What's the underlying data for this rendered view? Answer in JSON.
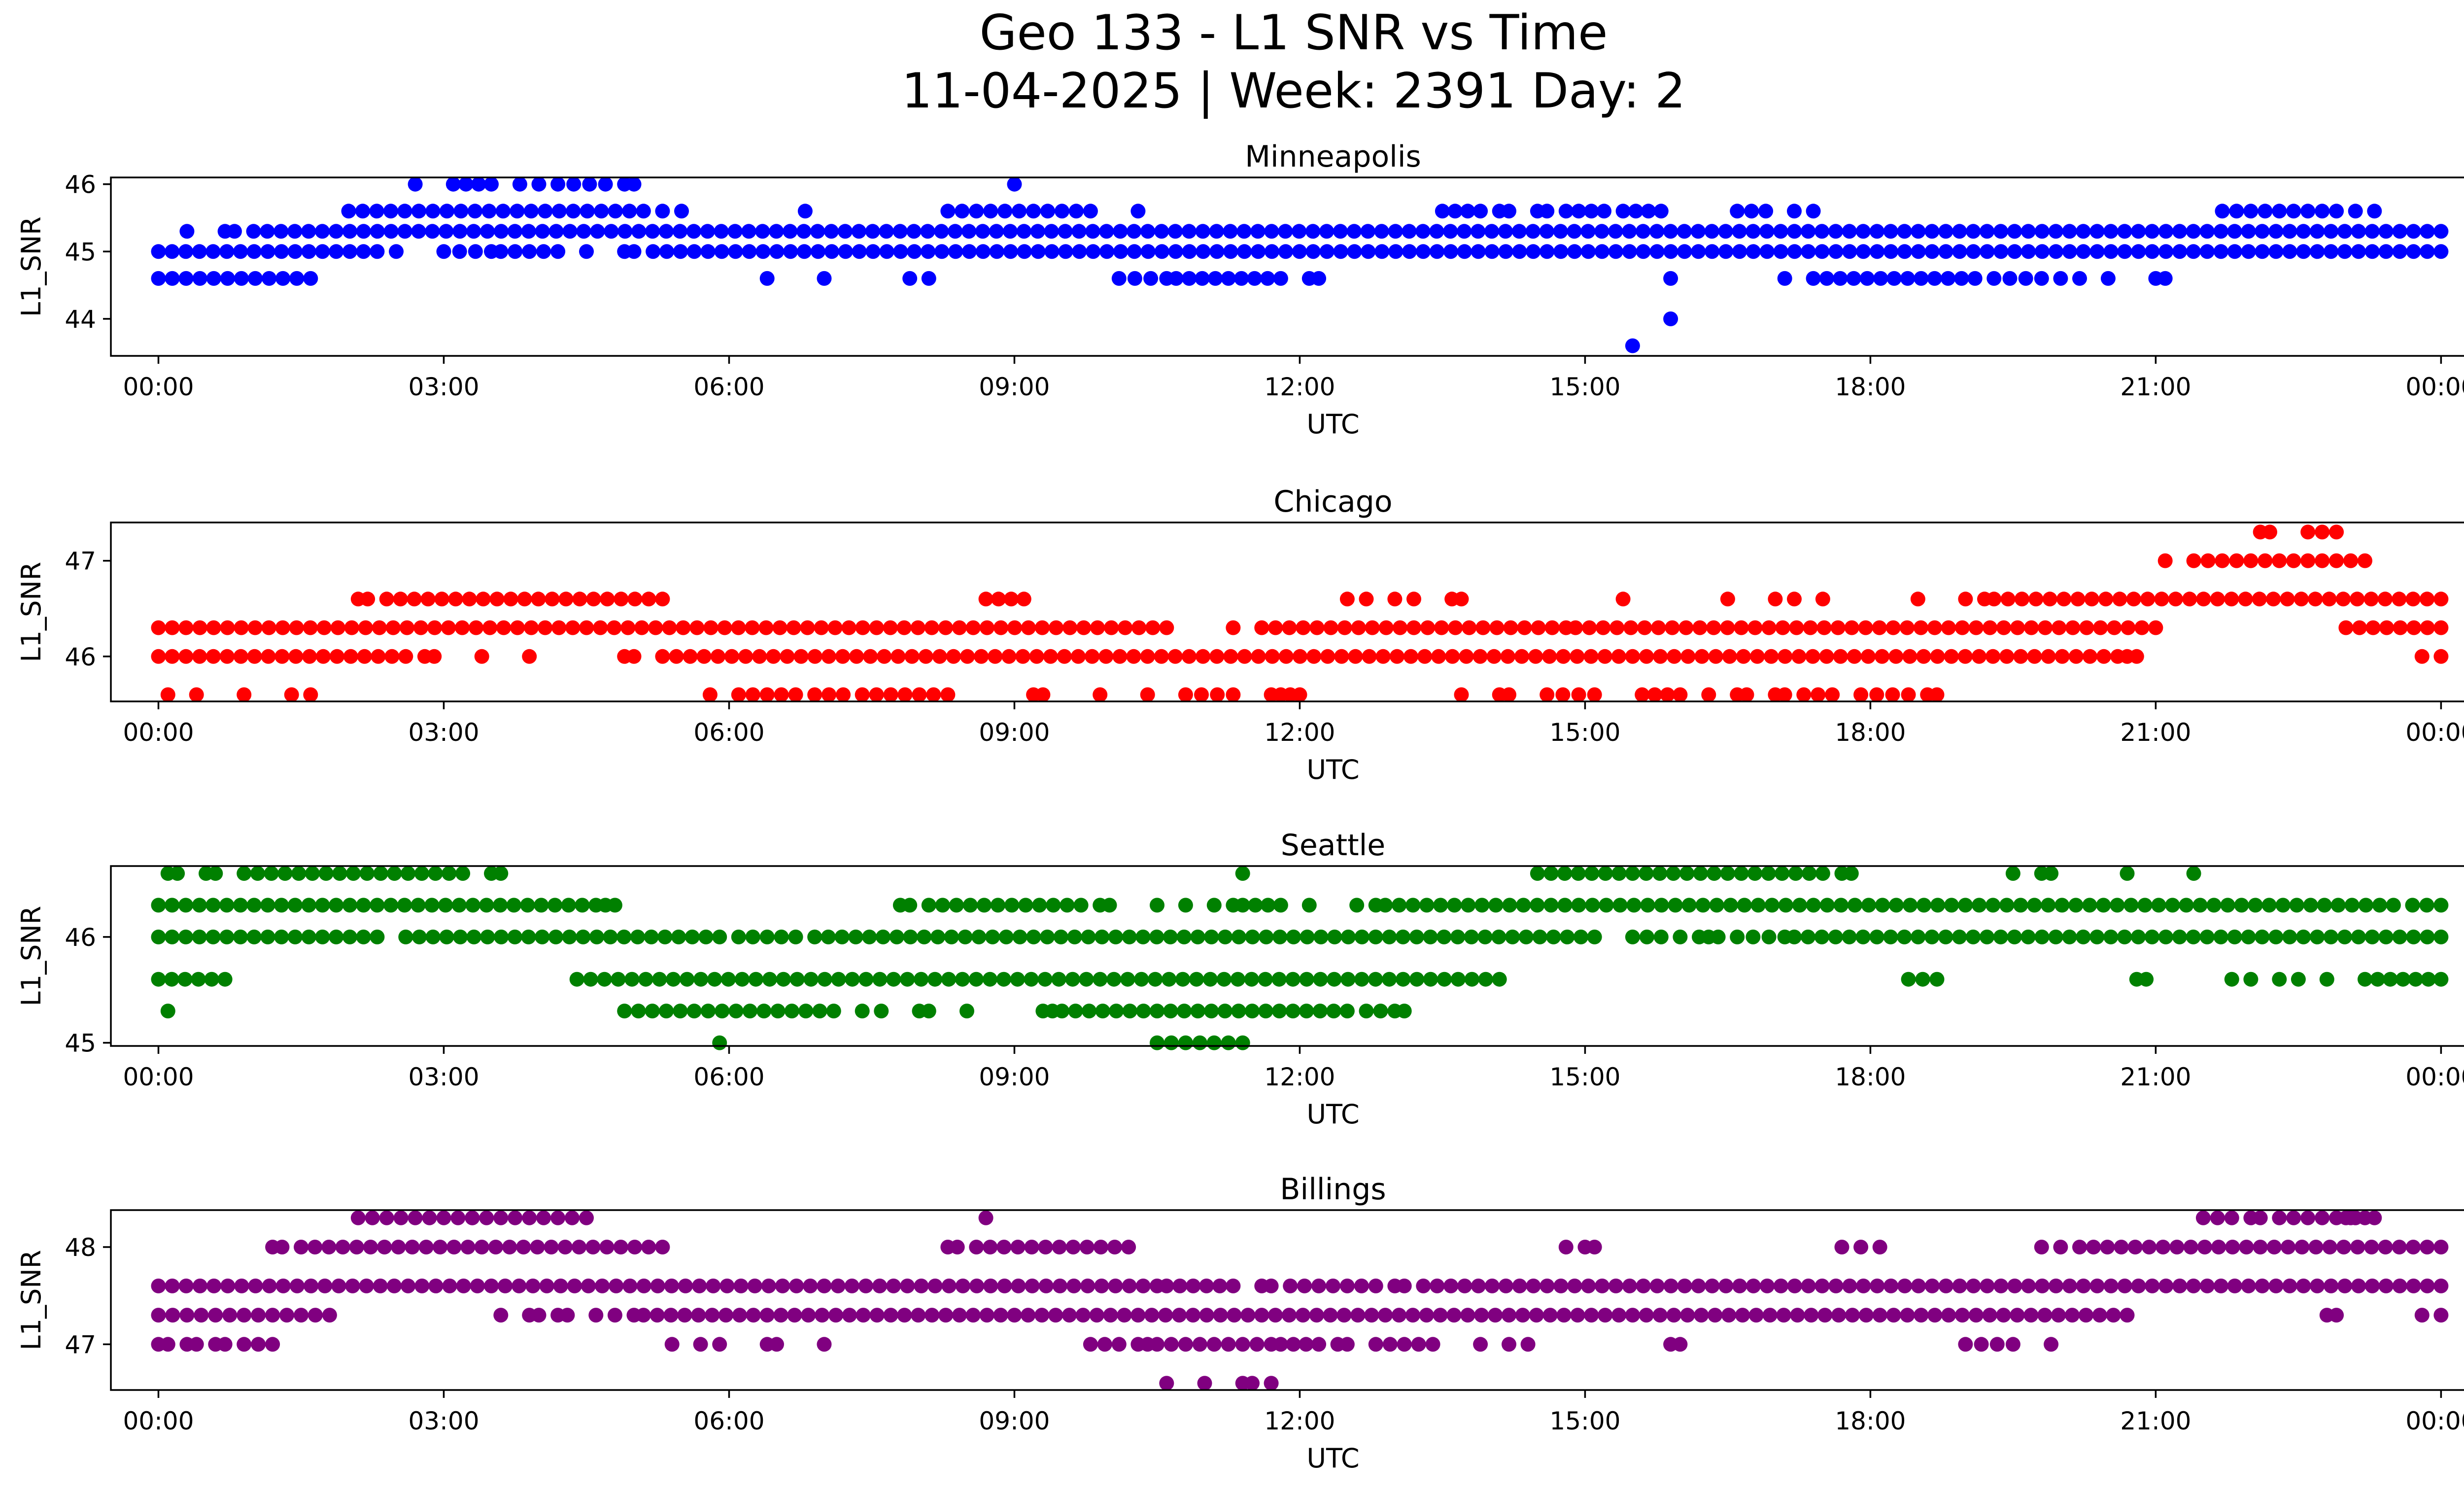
{
  "figure": {
    "title_line1": "Geo 133 - L1 SNR vs Time",
    "title_line2": "11-04-2025 | Week: 2391 Day: 2"
  },
  "chart_data": [
    {
      "type": "scatter",
      "title": "Minneapolis",
      "xlabel": "UTC",
      "ylabel": "L1_SNR",
      "color": "#0000ff",
      "xlim": [
        -0.5,
        25.2
      ],
      "ylim": [
        43.45,
        46.1
      ],
      "xticks": [
        0,
        3,
        6,
        9,
        12,
        15,
        18,
        21,
        24
      ],
      "xtick_labels": [
        "00:00",
        "03:00",
        "06:00",
        "09:00",
        "12:00",
        "15:00",
        "18:00",
        "21:00",
        "00:00"
      ],
      "yticks": [
        44,
        45,
        46
      ],
      "ytick_labels": [
        "44",
        "45",
        "46"
      ],
      "levels": [
        {
          "y": 45.0,
          "segments": [
            [
              0.0,
              2.3
            ],
            [
              2.5,
              2.5
            ],
            [
              3.0,
              3.5
            ],
            [
              3.6,
              4.2
            ],
            [
              4.5,
              4.5
            ],
            [
              4.9,
              5.0
            ],
            [
              5.2,
              24.0
            ]
          ]
        },
        {
          "y": 45.3,
          "segments": [
            [
              0.3,
              0.3
            ],
            [
              0.7,
              0.8
            ],
            [
              1.0,
              24.0
            ]
          ]
        },
        {
          "y": 45.6,
          "segments": [
            [
              2.0,
              5.1
            ],
            [
              5.3,
              5.5
            ],
            [
              6.8,
              6.8
            ],
            [
              8.3,
              9.8
            ],
            [
              10.3,
              10.3
            ],
            [
              13.5,
              13.9
            ],
            [
              14.1,
              14.2
            ],
            [
              14.5,
              14.6
            ],
            [
              14.8,
              15.2
            ],
            [
              15.4,
              15.8
            ],
            [
              16.6,
              16.9
            ],
            [
              17.2,
              17.4
            ],
            [
              21.7,
              22.9
            ],
            [
              23.1,
              23.3
            ]
          ]
        },
        {
          "y": 46.0,
          "segments": [
            [
              2.7,
              2.7
            ],
            [
              3.1,
              3.5
            ],
            [
              3.8,
              4.0
            ],
            [
              4.2,
              4.7
            ],
            [
              4.9,
              5.0
            ],
            [
              9.0,
              9.0
            ]
          ]
        },
        {
          "y": 44.6,
          "segments": [
            [
              0.0,
              1.6
            ],
            [
              6.4,
              6.4
            ],
            [
              7.0,
              7.0
            ],
            [
              7.9,
              7.9
            ],
            [
              8.1,
              8.1
            ],
            [
              10.1,
              10.6
            ],
            [
              10.7,
              11.8
            ],
            [
              12.1,
              12.2
            ],
            [
              15.9,
              15.9
            ],
            [
              17.1,
              17.1
            ],
            [
              17.4,
              19.1
            ],
            [
              19.3,
              19.8
            ],
            [
              20.0,
              20.2
            ],
            [
              20.5,
              20.5
            ],
            [
              21.0,
              21.1
            ]
          ]
        },
        {
          "y": 44.0,
          "segments": [
            [
              15.9,
              15.9
            ]
          ]
        },
        {
          "y": 43.6,
          "segments": [
            [
              15.5,
              15.5
            ]
          ]
        }
      ]
    },
    {
      "type": "scatter",
      "title": "Chicago",
      "xlabel": "UTC",
      "ylabel": "L1_SNR",
      "color": "#ff0000",
      "xlim": [
        -0.5,
        25.2
      ],
      "ylim": [
        45.53,
        47.4
      ],
      "xticks": [
        0,
        3,
        6,
        9,
        12,
        15,
        18,
        21,
        24
      ],
      "xtick_labels": [
        "00:00",
        "03:00",
        "06:00",
        "09:00",
        "12:00",
        "15:00",
        "18:00",
        "21:00",
        "00:00"
      ],
      "yticks": [
        46,
        47
      ],
      "ytick_labels": [
        "46",
        "47"
      ],
      "levels": [
        {
          "y": 46.0,
          "segments": [
            [
              0.0,
              2.6
            ],
            [
              2.8,
              2.9
            ],
            [
              3.4,
              3.4
            ],
            [
              3.9,
              3.9
            ],
            [
              4.9,
              5.0
            ],
            [
              5.3,
              20.6
            ],
            [
              20.7,
              20.8
            ],
            [
              23.8,
              24.0
            ]
          ]
        },
        {
          "y": 46.3,
          "segments": [
            [
              0.0,
              10.6
            ],
            [
              11.3,
              11.3
            ],
            [
              11.6,
              14.8
            ],
            [
              14.9,
              21.0
            ],
            [
              23.0,
              24.0
            ]
          ]
        },
        {
          "y": 46.6,
          "segments": [
            [
              2.1,
              2.2
            ],
            [
              2.4,
              5.3
            ],
            [
              8.7,
              9.1
            ],
            [
              12.5,
              12.7
            ],
            [
              13.0,
              13.2
            ],
            [
              13.6,
              13.7
            ],
            [
              15.4,
              15.4
            ],
            [
              16.5,
              16.5
            ],
            [
              17.0,
              17.2
            ],
            [
              17.5,
              17.5
            ],
            [
              18.5,
              18.5
            ],
            [
              19.0,
              19.2
            ],
            [
              19.3,
              24.0
            ]
          ]
        },
        {
          "y": 47.0,
          "segments": [
            [
              21.1,
              21.1
            ],
            [
              21.4,
              23.2
            ]
          ]
        },
        {
          "y": 47.3,
          "segments": [
            [
              22.1,
              22.2
            ],
            [
              22.6,
              22.9
            ]
          ]
        },
        {
          "y": 45.6,
          "segments": [
            [
              0.1,
              0.1
            ],
            [
              0.4,
              0.4
            ],
            [
              0.9,
              0.9
            ],
            [
              1.4,
              1.6
            ],
            [
              5.8,
              5.8
            ],
            [
              6.1,
              6.7
            ],
            [
              6.9,
              7.2
            ],
            [
              7.4,
              8.3
            ],
            [
              9.2,
              9.3
            ],
            [
              9.9,
              9.9
            ],
            [
              10.4,
              10.4
            ],
            [
              10.8,
              11.3
            ],
            [
              11.7,
              11.8
            ],
            [
              11.9,
              12.0
            ],
            [
              13.7,
              13.7
            ],
            [
              14.1,
              14.2
            ],
            [
              14.6,
              15.1
            ],
            [
              15.6,
              16.0
            ],
            [
              16.3,
              16.3
            ],
            [
              16.6,
              16.7
            ],
            [
              17.0,
              17.1
            ],
            [
              17.3,
              17.6
            ],
            [
              17.9,
              18.4
            ],
            [
              18.6,
              18.7
            ]
          ]
        }
      ]
    },
    {
      "type": "scatter",
      "title": "Seattle",
      "xlabel": "UTC",
      "ylabel": "L1_SNR",
      "color": "#008000",
      "xlim": [
        -0.5,
        25.2
      ],
      "ylim": [
        44.97,
        46.67
      ],
      "xticks": [
        0,
        3,
        6,
        9,
        12,
        15,
        18,
        21,
        24
      ],
      "xtick_labels": [
        "00:00",
        "03:00",
        "06:00",
        "09:00",
        "12:00",
        "15:00",
        "18:00",
        "21:00",
        "00:00"
      ],
      "yticks": [
        45,
        46
      ],
      "ytick_labels": [
        "45",
        "46"
      ],
      "levels": [
        {
          "y": 45.0,
          "segments": [
            [
              5.9,
              5.9
            ],
            [
              10.5,
              11.4
            ]
          ]
        },
        {
          "y": 45.3,
          "segments": [
            [
              0.1,
              0.1
            ],
            [
              4.9,
              7.1
            ],
            [
              7.4,
              7.6
            ],
            [
              8.0,
              8.1
            ],
            [
              8.5,
              8.5
            ],
            [
              9.3,
              9.4
            ],
            [
              9.5,
              12.5
            ],
            [
              12.7,
              13.0
            ],
            [
              13.1,
              13.1
            ]
          ]
        },
        {
          "y": 45.6,
          "segments": [
            [
              0.0,
              0.7
            ],
            [
              4.4,
              14.1
            ],
            [
              18.4,
              18.7
            ],
            [
              20.8,
              20.9
            ],
            [
              21.8,
              22.0
            ],
            [
              22.3,
              22.5
            ],
            [
              22.8,
              22.8
            ],
            [
              23.2,
              24.0
            ]
          ]
        },
        {
          "y": 46.0,
          "segments": [
            [
              0.0,
              2.3
            ],
            [
              2.6,
              5.9
            ],
            [
              6.1,
              6.7
            ],
            [
              6.9,
              15.1
            ],
            [
              15.5,
              15.8
            ],
            [
              16.0,
              16.2
            ],
            [
              16.3,
              16.4
            ],
            [
              16.6,
              17.1
            ],
            [
              17.2,
              24.0
            ]
          ]
        },
        {
          "y": 46.3,
          "segments": [
            [
              0.0,
              4.6
            ],
            [
              4.7,
              4.8
            ],
            [
              7.8,
              7.9
            ],
            [
              8.1,
              9.7
            ],
            [
              9.9,
              10.0
            ],
            [
              10.5,
              10.5
            ],
            [
              10.8,
              10.8
            ],
            [
              11.1,
              11.3
            ],
            [
              11.4,
              11.8
            ],
            [
              12.1,
              12.1
            ],
            [
              12.6,
              12.8
            ],
            [
              12.9,
              23.5
            ],
            [
              23.7,
              24.0
            ]
          ]
        },
        {
          "y": 46.6,
          "segments": [
            [
              0.1,
              0.2
            ],
            [
              0.5,
              0.6
            ],
            [
              0.9,
              3.2
            ],
            [
              3.5,
              3.6
            ],
            [
              11.4,
              11.4
            ],
            [
              14.5,
              17.5
            ],
            [
              17.7,
              17.8
            ],
            [
              19.5,
              19.5
            ],
            [
              19.8,
              19.9
            ],
            [
              20.7,
              20.7
            ],
            [
              21.4,
              21.4
            ]
          ]
        }
      ]
    },
    {
      "type": "scatter",
      "title": "Billings",
      "xlabel": "UTC",
      "ylabel": "L1_SNR",
      "color": "#800080",
      "xlim": [
        -0.5,
        25.2
      ],
      "ylim": [
        46.53,
        48.38
      ],
      "xticks": [
        0,
        3,
        6,
        9,
        12,
        15,
        18,
        21,
        24
      ],
      "xtick_labels": [
        "00:00",
        "03:00",
        "06:00",
        "09:00",
        "12:00",
        "15:00",
        "18:00",
        "21:00",
        "00:00"
      ],
      "yticks": [
        47,
        48
      ],
      "ytick_labels": [
        "47",
        "48"
      ],
      "levels": [
        {
          "y": 46.6,
          "segments": [
            [
              10.6,
              10.6
            ],
            [
              11.0,
              11.0
            ],
            [
              11.4,
              11.5
            ],
            [
              11.7,
              11.7
            ]
          ]
        },
        {
          "y": 47.0,
          "segments": [
            [
              0.0,
              0.1
            ],
            [
              0.3,
              0.4
            ],
            [
              0.6,
              0.7
            ],
            [
              0.9,
              1.2
            ],
            [
              5.4,
              5.4
            ],
            [
              5.7,
              5.7
            ],
            [
              5.9,
              5.9
            ],
            [
              6.4,
              6.5
            ],
            [
              7.0,
              7.0
            ],
            [
              9.8,
              10.1
            ],
            [
              10.3,
              10.4
            ],
            [
              10.5,
              11.7
            ],
            [
              11.8,
              12.2
            ],
            [
              12.4,
              12.5
            ],
            [
              12.8,
              13.4
            ],
            [
              13.9,
              13.9
            ],
            [
              14.2,
              14.4
            ],
            [
              15.9,
              16.0
            ],
            [
              19.0,
              19.5
            ],
            [
              19.9,
              19.9
            ]
          ]
        },
        {
          "y": 47.3,
          "segments": [
            [
              0.0,
              1.8
            ],
            [
              3.6,
              3.6
            ],
            [
              3.9,
              4.0
            ],
            [
              4.2,
              4.3
            ],
            [
              4.6,
              4.8
            ],
            [
              5.0,
              5.0
            ],
            [
              5.1,
              20.7
            ],
            [
              22.8,
              22.9
            ],
            [
              23.8,
              24.0
            ]
          ]
        },
        {
          "y": 47.6,
          "segments": [
            [
              0.0,
              10.5
            ],
            [
              10.6,
              11.3
            ],
            [
              11.6,
              11.7
            ],
            [
              11.9,
              12.8
            ],
            [
              13.0,
              13.1
            ],
            [
              13.3,
              24.0
            ]
          ]
        },
        {
          "y": 48.0,
          "segments": [
            [
              1.2,
              1.3
            ],
            [
              1.5,
              5.3
            ],
            [
              8.3,
              8.4
            ],
            [
              8.6,
              10.2
            ],
            [
              14.8,
              14.8
            ],
            [
              15.0,
              15.1
            ],
            [
              17.7,
              17.9
            ],
            [
              18.1,
              18.1
            ],
            [
              19.8,
              20.0
            ],
            [
              20.2,
              24.0
            ]
          ]
        },
        {
          "y": 48.3,
          "segments": [
            [
              2.1,
              3.3
            ],
            [
              3.3,
              4.5
            ],
            [
              8.7,
              8.7
            ],
            [
              21.5,
              21.8
            ],
            [
              22.0,
              22.1
            ],
            [
              22.3,
              23.2
            ],
            [
              23.0,
              23.1
            ],
            [
              23.3,
              23.3
            ]
          ]
        }
      ]
    }
  ]
}
